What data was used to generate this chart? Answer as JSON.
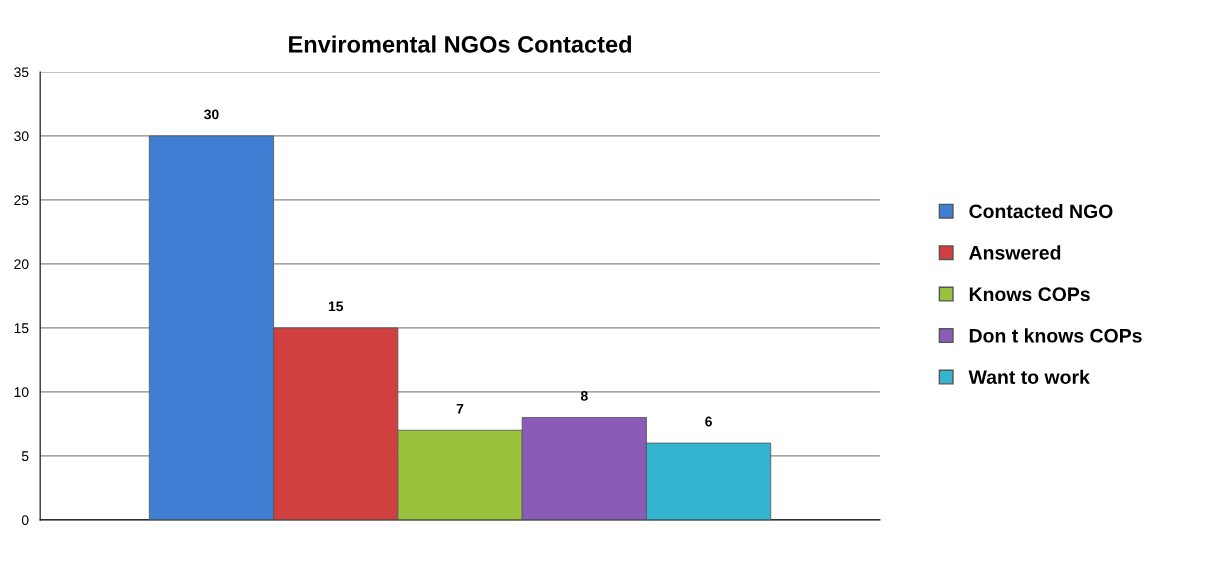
{
  "chart_data": {
    "type": "bar",
    "title": "Enviromental NGOs Contacted",
    "categories": [
      null
    ],
    "series": [
      {
        "name": "Contacted NGO",
        "color": "#3f7fd3",
        "values": [
          30
        ]
      },
      {
        "name": "Answered",
        "color": "#d04040",
        "values": [
          15
        ]
      },
      {
        "name": "Knows COPs",
        "color": "#9ac23c",
        "values": [
          7
        ]
      },
      {
        "name": "Don t knows COPs",
        "color": "#8a5cb8",
        "values": [
          8
        ]
      },
      {
        "name": "Want to work",
        "color": "#33b4cf",
        "values": [
          6
        ]
      }
    ],
    "ylim": [
      0,
      35
    ],
    "yticks": [
      0,
      5,
      10,
      15,
      20,
      25,
      30,
      35
    ],
    "grid": "y",
    "legend": "right",
    "data_labels": true
  }
}
